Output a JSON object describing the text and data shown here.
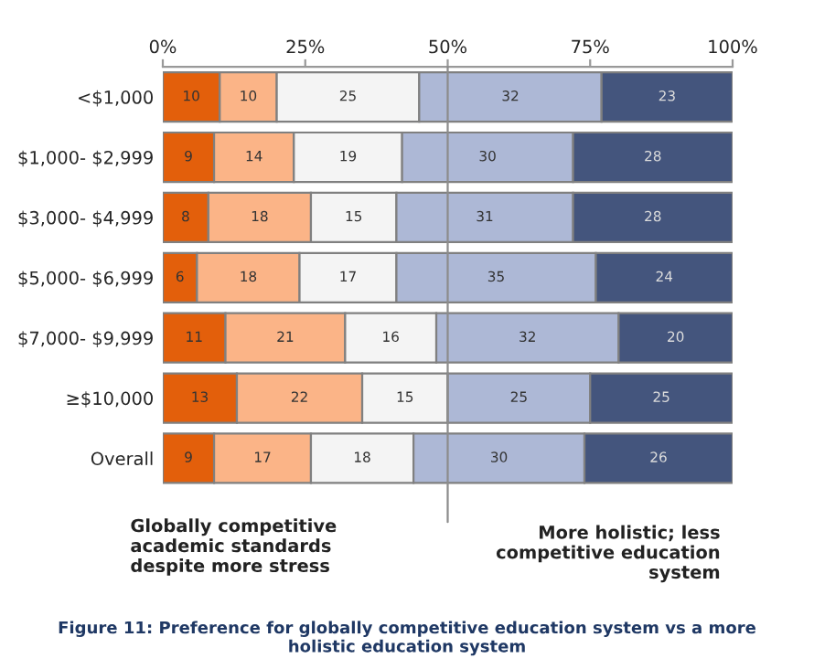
{
  "chart_data": {
    "type": "bar",
    "orientation": "horizontal",
    "stacked": true,
    "data_labels": true,
    "categories": [
      "<$1,000",
      "$1,000- $2,999",
      "$3,000- $4,999",
      "$5,000- $6,999",
      "$7,000- $9,999",
      "≥$10,000",
      "Overall"
    ],
    "series": [
      {
        "color": "#e35f0b",
        "values": [
          10,
          9,
          8,
          6,
          11,
          13,
          9
        ]
      },
      {
        "color": "#fbb487",
        "values": [
          10,
          14,
          18,
          18,
          21,
          22,
          17
        ]
      },
      {
        "color": "#f4f4f4",
        "values": [
          25,
          19,
          15,
          17,
          16,
          15,
          18
        ]
      },
      {
        "color": "#adb8d6",
        "values": [
          32,
          30,
          31,
          35,
          32,
          25,
          30
        ]
      },
      {
        "color": "#44557d",
        "values": [
          23,
          28,
          28,
          24,
          20,
          25,
          26
        ]
      }
    ],
    "xlim": [
      0,
      100
    ],
    "xticks": [
      {
        "value": 0,
        "label": "0%"
      },
      {
        "value": 25,
        "label": "25%"
      },
      {
        "value": 50,
        "label": "50%"
      },
      {
        "value": 75,
        "label": "75%"
      },
      {
        "value": 100,
        "label": "100%"
      }
    ],
    "ref_lines": [
      {
        "axis": "x",
        "value": 50,
        "color": "#8c8c8c"
      }
    ],
    "grid": false,
    "legend": false,
    "annotations": [
      "Globally competitive academic standards despite more stress",
      "More holistic; less competitive education system",
      "Figure 11: Preference for globally competitive education system vs a more holistic education system"
    ]
  }
}
